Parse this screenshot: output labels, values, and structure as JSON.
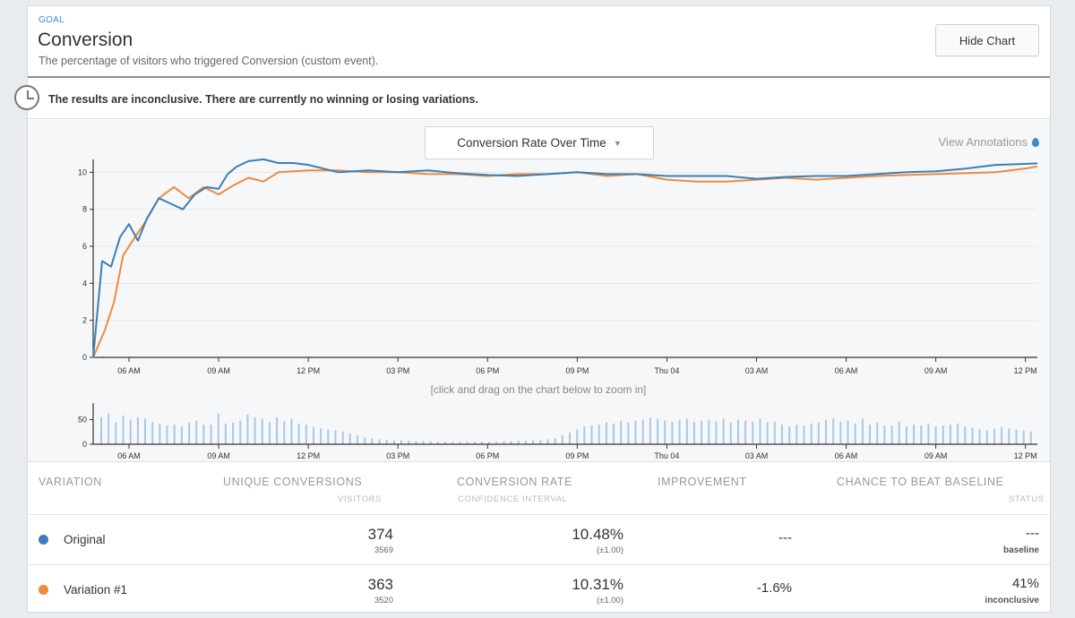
{
  "goal": {
    "label": "GOAL",
    "title": "Conversion",
    "description": "The percentage of visitors who triggered Conversion (custom event).",
    "hide_chart_label": "Hide Chart"
  },
  "banner": {
    "icon": "clock-icon",
    "text": "The results are inconclusive. There are currently no winning or losing variations."
  },
  "chart_controls": {
    "chart_select_value": "Conversion Rate Over Time",
    "view_annotations_label": "View Annotations",
    "zoom_hint": "[click and drag on the chart below to zoom in]"
  },
  "colors": {
    "original": "#3a7fb8",
    "variation": "#ee8a3c",
    "volume_bars": "#a9c8e3",
    "link_blue": "#3a8cc8"
  },
  "chart_data": [
    {
      "type": "line",
      "x_tick_labels": [
        "06 AM",
        "09 AM",
        "12 PM",
        "03 PM",
        "06 PM",
        "09 PM",
        "Thu 04",
        "03 AM",
        "06 AM",
        "09 AM",
        "12 PM"
      ],
      "x_hours": [
        0,
        3,
        6,
        9,
        12,
        15,
        18,
        21,
        24,
        27,
        30
      ],
      "ylim": [
        0,
        10.5
      ],
      "y_ticks": [
        0,
        2,
        4,
        6,
        8,
        10
      ],
      "grid": true,
      "series": [
        {
          "name": "Original",
          "x": [
            -1.2,
            -0.9,
            -0.6,
            -0.3,
            0,
            0.3,
            0.6,
            1,
            1.4,
            1.8,
            2.2,
            2.6,
            3,
            3.3,
            3.6,
            4,
            4.5,
            5,
            5.5,
            6,
            6.5,
            7,
            8,
            9,
            10,
            11,
            12,
            13,
            14,
            15,
            16,
            17,
            18,
            19,
            20,
            21,
            22,
            23,
            24,
            25,
            26,
            27,
            28,
            29,
            30,
            30.4
          ],
          "y": [
            0,
            5.2,
            4.9,
            6.5,
            7.2,
            6.3,
            7.5,
            8.6,
            8.3,
            8.0,
            8.8,
            9.2,
            9.1,
            9.9,
            10.3,
            10.6,
            10.7,
            10.5,
            10.5,
            10.4,
            10.2,
            10.0,
            10.1,
            10.0,
            10.1,
            9.95,
            9.85,
            9.8,
            9.9,
            10.0,
            9.9,
            9.9,
            9.8,
            9.8,
            9.8,
            9.65,
            9.75,
            9.8,
            9.8,
            9.9,
            10.0,
            10.05,
            10.2,
            10.4,
            10.45,
            10.48
          ]
        },
        {
          "name": "Variation #1",
          "x": [
            -1.2,
            -0.8,
            -0.5,
            -0.2,
            0.2,
            0.5,
            1,
            1.5,
            2,
            2.5,
            3,
            3.5,
            4,
            4.5,
            5,
            6,
            7,
            8,
            9,
            10,
            11,
            12,
            13,
            14,
            15,
            16,
            17,
            18,
            19,
            20,
            21,
            22,
            23,
            24,
            25,
            26,
            27,
            28,
            29,
            30,
            30.4
          ],
          "y": [
            0,
            1.5,
            3.0,
            5.5,
            6.5,
            7.2,
            8.6,
            9.2,
            8.6,
            9.2,
            8.8,
            9.3,
            9.7,
            9.5,
            10.0,
            10.1,
            10.1,
            10.0,
            10.0,
            9.9,
            9.9,
            9.8,
            9.9,
            9.9,
            10.0,
            9.8,
            9.9,
            9.6,
            9.5,
            9.5,
            9.6,
            9.7,
            9.6,
            9.7,
            9.8,
            9.85,
            9.9,
            9.95,
            10.0,
            10.2,
            10.31
          ]
        }
      ]
    },
    {
      "type": "bar",
      "title": "",
      "x_tick_labels": [
        "06 AM",
        "09 AM",
        "12 PM",
        "03 PM",
        "06 PM",
        "09 PM",
        "Thu 04",
        "03 AM",
        "06 AM",
        "09 AM",
        "12 PM"
      ],
      "ylim": [
        0,
        80
      ],
      "y_ticks": [
        0,
        50
      ],
      "values": [
        55,
        62,
        45,
        58,
        50,
        55,
        52,
        45,
        42,
        38,
        40,
        36,
        44,
        48,
        40,
        40,
        62,
        42,
        44,
        48,
        60,
        55,
        52,
        45,
        55,
        46,
        52,
        42,
        40,
        35,
        32,
        30,
        28,
        26,
        22,
        18,
        14,
        12,
        10,
        9,
        8,
        8,
        7,
        6,
        6,
        6,
        5,
        5,
        5,
        5,
        5,
        5,
        5,
        5,
        5,
        6,
        6,
        7,
        7,
        8,
        8,
        10,
        12,
        18,
        24,
        30,
        36,
        38,
        40,
        45,
        42,
        48,
        44,
        48,
        50,
        54,
        52,
        48,
        46,
        50,
        52,
        45,
        48,
        50,
        46,
        52,
        44,
        50,
        48,
        46,
        52,
        45,
        46,
        40,
        36,
        40,
        38,
        42,
        44,
        50,
        52,
        46,
        48,
        42,
        52,
        40,
        44,
        38,
        38,
        46,
        36,
        40,
        38,
        42,
        36,
        38,
        40,
        42,
        36,
        34,
        30,
        28,
        32,
        35,
        32,
        30,
        28,
        26
      ]
    }
  ],
  "table": {
    "headers": {
      "variation": "VARIATION",
      "unique_conversions": "UNIQUE CONVERSIONS",
      "unique_conversions_sub": "VISITORS",
      "conversion_rate": "CONVERSION RATE",
      "conversion_rate_sub": "CONFIDENCE INTERVAL",
      "improvement": "IMPROVEMENT",
      "chance": "CHANCE TO BEAT BASELINE",
      "chance_sub": "STATUS"
    },
    "rows": [
      {
        "name": "Original",
        "conversions": "374",
        "visitors": "3569",
        "rate": "10.48%",
        "interval": "(±1.00)",
        "improvement": "---",
        "chance": "---",
        "status": "baseline"
      },
      {
        "name": "Variation #1",
        "conversions": "363",
        "visitors": "3520",
        "rate": "10.31%",
        "interval": "(±1.00)",
        "improvement": "-1.6%",
        "chance": "41%",
        "status": "inconclusive"
      }
    ]
  }
}
